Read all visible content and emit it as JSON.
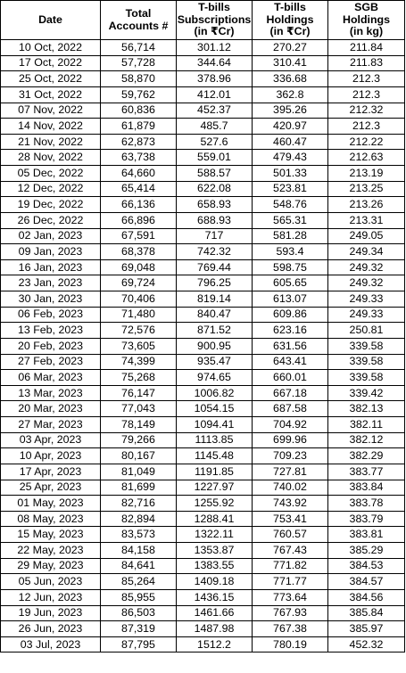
{
  "table": {
    "headers": {
      "date": "Date",
      "accounts": [
        "Total",
        "Accounts #"
      ],
      "subscriptions": [
        "T-bills",
        "Subscriptions",
        "(in ₹Cr)"
      ],
      "holdings": [
        "T-bills",
        "Holdings",
        "(in ₹Cr)"
      ],
      "sgb": [
        "SGB",
        "Holdings",
        "(in kg)"
      ]
    },
    "rows": [
      [
        "10 Oct, 2022",
        "56,714",
        "301.12",
        "270.27",
        "211.84"
      ],
      [
        "17 Oct, 2022",
        "57,728",
        "344.64",
        "310.41",
        "211.83"
      ],
      [
        "25 Oct, 2022",
        "58,870",
        "378.96",
        "336.68",
        "212.3"
      ],
      [
        "31 Oct, 2022",
        "59,762",
        "412.01",
        "362.8",
        "212.3"
      ],
      [
        "07 Nov, 2022",
        "60,836",
        "452.37",
        "395.26",
        "212.32"
      ],
      [
        "14 Nov, 2022",
        "61,879",
        "485.7",
        "420.97",
        "212.3"
      ],
      [
        "21 Nov, 2022",
        "62,873",
        "527.6",
        "460.47",
        "212.22"
      ],
      [
        "28 Nov, 2022",
        "63,738",
        "559.01",
        "479.43",
        "212.63"
      ],
      [
        "05 Dec, 2022",
        "64,660",
        "588.57",
        "501.33",
        "213.19"
      ],
      [
        "12 Dec, 2022",
        "65,414",
        "622.08",
        "523.81",
        "213.25"
      ],
      [
        "19 Dec, 2022",
        "66,136",
        "658.93",
        "548.76",
        "213.26"
      ],
      [
        "26 Dec, 2022",
        "66,896",
        "688.93",
        "565.31",
        "213.31"
      ],
      [
        "02 Jan, 2023",
        "67,591",
        "717",
        "581.28",
        "249.05"
      ],
      [
        "09 Jan, 2023",
        "68,378",
        "742.32",
        "593.4",
        "249.34"
      ],
      [
        "16 Jan, 2023",
        "69,048",
        "769.44",
        "598.75",
        "249.32"
      ],
      [
        "23 Jan, 2023",
        "69,724",
        "796.25",
        "605.65",
        "249.32"
      ],
      [
        "30 Jan, 2023",
        "70,406",
        "819.14",
        "613.07",
        "249.33"
      ],
      [
        "06 Feb, 2023",
        "71,480",
        "840.47",
        "609.86",
        "249.33"
      ],
      [
        "13 Feb, 2023",
        "72,576",
        "871.52",
        "623.16",
        "250.81"
      ],
      [
        "20 Feb, 2023",
        "73,605",
        "900.95",
        "631.56",
        "339.58"
      ],
      [
        "27 Feb, 2023",
        "74,399",
        "935.47",
        "643.41",
        "339.58"
      ],
      [
        "06 Mar, 2023",
        "75,268",
        "974.65",
        "660.01",
        "339.58"
      ],
      [
        "13 Mar, 2023",
        "76,147",
        "1006.82",
        "667.18",
        "339.42"
      ],
      [
        "20 Mar, 2023",
        "77,043",
        "1054.15",
        "687.58",
        "382.13"
      ],
      [
        "27 Mar, 2023",
        "78,149",
        "1094.41",
        "704.92",
        "382.11"
      ],
      [
        "03 Apr, 2023",
        "79,266",
        "1113.85",
        "699.96",
        "382.12"
      ],
      [
        "10 Apr, 2023",
        "80,167",
        "1145.48",
        "709.23",
        "382.29"
      ],
      [
        "17 Apr, 2023",
        "81,049",
        "1191.85",
        "727.81",
        "383.77"
      ],
      [
        "25 Apr, 2023",
        "81,699",
        "1227.97",
        "740.02",
        "383.84"
      ],
      [
        "01 May, 2023",
        "82,716",
        "1255.92",
        "743.92",
        "383.78"
      ],
      [
        "08 May, 2023",
        "82,894",
        "1288.41",
        "753.41",
        "383.79"
      ],
      [
        "15 May, 2023",
        "83,573",
        "1322.11",
        "760.57",
        "383.81"
      ],
      [
        "22 May, 2023",
        "84,158",
        "1353.87",
        "767.43",
        "385.29"
      ],
      [
        "29 May, 2023",
        "84,641",
        "1383.55",
        "771.82",
        "384.53"
      ],
      [
        "05 Jun, 2023",
        "85,264",
        "1409.18",
        "771.77",
        "384.57"
      ],
      [
        "12 Jun, 2023",
        "85,955",
        "1436.15",
        "773.64",
        "384.56"
      ],
      [
        "19 Jun, 2023",
        "86,503",
        "1461.66",
        "767.93",
        "385.84"
      ],
      [
        "26 Jun, 2023",
        "87,319",
        "1487.98",
        "767.38",
        "385.97"
      ],
      [
        "03 Jul, 2023",
        "87,795",
        "1512.2",
        "780.19",
        "452.32"
      ]
    ]
  }
}
